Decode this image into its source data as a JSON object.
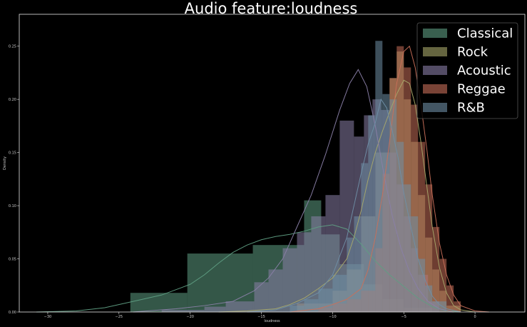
{
  "chart_data": {
    "type": "histogram+kde",
    "title": "Audio feature:loudness",
    "xlabel": "loudness",
    "ylabel": "Density",
    "xlim": [
      -32,
      3.5
    ],
    "ylim": [
      0,
      0.28
    ],
    "xticks": [
      -30,
      -25,
      -20,
      -15,
      -10,
      -5,
      0
    ],
    "yticks": [
      0.0,
      0.05,
      0.1,
      0.15,
      0.2,
      0.25
    ],
    "ytick_labels": [
      "0.00",
      "0.05",
      "0.10",
      "0.15",
      "0.20",
      "0.25"
    ],
    "grid": false,
    "legend_position": "top-right",
    "series": [
      {
        "name": "Classical",
        "color": "#5f9e83",
        "hist": [
          [
            -24.2,
            -20.2,
            0.018
          ],
          [
            -20.2,
            -15.6,
            0.055
          ],
          [
            -15.6,
            -12.0,
            0.063
          ],
          [
            -12.0,
            -10.8,
            0.105
          ],
          [
            -10.8,
            -9.5,
            0.073
          ],
          [
            -9.5,
            -7.8,
            0.045
          ],
          [
            -7.8,
            -6.5,
            0.026
          ],
          [
            -6.5,
            -5.0,
            0.012
          ],
          [
            -5.0,
            -3.0,
            0.004
          ]
        ],
        "kde": [
          [
            -30.8,
            0.0
          ],
          [
            -28,
            0.001
          ],
          [
            -26,
            0.004
          ],
          [
            -24,
            0.01
          ],
          [
            -22,
            0.016
          ],
          [
            -20,
            0.026
          ],
          [
            -19,
            0.035
          ],
          [
            -18,
            0.046
          ],
          [
            -17,
            0.056
          ],
          [
            -16,
            0.063
          ],
          [
            -15,
            0.068
          ],
          [
            -14,
            0.071
          ],
          [
            -13,
            0.073
          ],
          [
            -12,
            0.076
          ],
          [
            -11,
            0.08
          ],
          [
            -10,
            0.082
          ],
          [
            -9,
            0.078
          ],
          [
            -8,
            0.064
          ],
          [
            -7,
            0.048
          ],
          [
            -6,
            0.035
          ],
          [
            -5,
            0.024
          ],
          [
            -4,
            0.013
          ],
          [
            -3,
            0.005
          ],
          [
            -2,
            0.001
          ],
          [
            -1,
            0.0
          ]
        ]
      },
      {
        "name": "Rock",
        "color": "#a8a86a",
        "hist": [
          [
            -12.5,
            -10.0,
            0.008
          ],
          [
            -10.0,
            -9.0,
            0.02
          ],
          [
            -9.0,
            -8.0,
            0.04
          ],
          [
            -8.0,
            -7.0,
            0.09
          ],
          [
            -7.0,
            -6.0,
            0.15
          ],
          [
            -6.0,
            -5.5,
            0.22
          ],
          [
            -5.5,
            -5.0,
            0.245
          ],
          [
            -5.0,
            -4.5,
            0.2
          ],
          [
            -4.5,
            -4.0,
            0.16
          ],
          [
            -4.0,
            -3.5,
            0.11
          ],
          [
            -3.5,
            -3.0,
            0.07
          ],
          [
            -3.0,
            -2.5,
            0.04
          ],
          [
            -2.5,
            -2.0,
            0.02
          ],
          [
            -2.0,
            -1.0,
            0.006
          ]
        ],
        "kde": [
          [
            -18,
            0.0
          ],
          [
            -16,
            0.001
          ],
          [
            -14,
            0.003
          ],
          [
            -13,
            0.007
          ],
          [
            -12,
            0.013
          ],
          [
            -11,
            0.022
          ],
          [
            -10,
            0.032
          ],
          [
            -9,
            0.05
          ],
          [
            -8.5,
            0.07
          ],
          [
            -8,
            0.095
          ],
          [
            -7.5,
            0.125
          ],
          [
            -7,
            0.15
          ],
          [
            -6.5,
            0.17
          ],
          [
            -6,
            0.188
          ],
          [
            -5.5,
            0.205
          ],
          [
            -5,
            0.218
          ],
          [
            -4.6,
            0.215
          ],
          [
            -4.2,
            0.195
          ],
          [
            -3.8,
            0.16
          ],
          [
            -3.4,
            0.12
          ],
          [
            -3,
            0.08
          ],
          [
            -2.5,
            0.042
          ],
          [
            -2,
            0.018
          ],
          [
            -1.5,
            0.006
          ],
          [
            -1,
            0.002
          ],
          [
            0,
            0.0
          ]
        ]
      },
      {
        "name": "Acoustic",
        "color": "#8a7fa8",
        "hist": [
          [
            -22,
            -19,
            0.002
          ],
          [
            -19,
            -17.5,
            0.005
          ],
          [
            -17.5,
            -15.5,
            0.01
          ],
          [
            -15.5,
            -14.5,
            0.028
          ],
          [
            -14.5,
            -13.5,
            0.04
          ],
          [
            -13.5,
            -12.5,
            0.06
          ],
          [
            -12.5,
            -11.5,
            0.075
          ],
          [
            -11.5,
            -10.5,
            0.09
          ],
          [
            -10.5,
            -9.5,
            0.11
          ],
          [
            -9.5,
            -8.5,
            0.18
          ],
          [
            -8.5,
            -7.8,
            0.165
          ],
          [
            -7.8,
            -7.2,
            0.185
          ],
          [
            -7.2,
            -6.6,
            0.2
          ],
          [
            -6.6,
            -6.0,
            0.19
          ],
          [
            -6.0,
            -5.5,
            0.15
          ],
          [
            -5.5,
            -5.0,
            0.12
          ],
          [
            -5.0,
            -4.5,
            0.09
          ],
          [
            -4.5,
            -4.0,
            0.06
          ],
          [
            -4.0,
            -3.3,
            0.035
          ],
          [
            -3.3,
            -2.5,
            0.01
          ]
        ],
        "kde": [
          [
            -24,
            0.0
          ],
          [
            -21,
            0.003
          ],
          [
            -19,
            0.006
          ],
          [
            -17,
            0.01
          ],
          [
            -15.5,
            0.02
          ],
          [
            -14.5,
            0.032
          ],
          [
            -13.5,
            0.05
          ],
          [
            -12.5,
            0.08
          ],
          [
            -11.5,
            0.11
          ],
          [
            -10.5,
            0.148
          ],
          [
            -9.5,
            0.19
          ],
          [
            -8.8,
            0.215
          ],
          [
            -8.2,
            0.228
          ],
          [
            -7.6,
            0.212
          ],
          [
            -7.0,
            0.175
          ],
          [
            -6.4,
            0.13
          ],
          [
            -5.8,
            0.09
          ],
          [
            -5.2,
            0.06
          ],
          [
            -4.6,
            0.038
          ],
          [
            -4,
            0.022
          ],
          [
            -3.3,
            0.01
          ],
          [
            -2.5,
            0.003
          ],
          [
            -1.5,
            0.0
          ]
        ]
      },
      {
        "name": "Reggae",
        "color": "#c9705a",
        "hist": [
          [
            -11,
            -10,
            0.004
          ],
          [
            -10,
            -9,
            0.008
          ],
          [
            -9,
            -8,
            0.012
          ],
          [
            -8,
            -7,
            0.02
          ],
          [
            -7,
            -6.5,
            0.06
          ],
          [
            -6.5,
            -6.0,
            0.13
          ],
          [
            -6.0,
            -5.5,
            0.22
          ],
          [
            -5.5,
            -5.0,
            0.25
          ],
          [
            -5.0,
            -4.5,
            0.23
          ],
          [
            -4.5,
            -4.0,
            0.195
          ],
          [
            -4.0,
            -3.5,
            0.16
          ],
          [
            -3.5,
            -3.0,
            0.12
          ],
          [
            -3.0,
            -2.5,
            0.08
          ],
          [
            -2.5,
            -2.0,
            0.05
          ],
          [
            -2.0,
            -1.5,
            0.025
          ],
          [
            -1.5,
            -1.0,
            0.01
          ]
        ],
        "kde": [
          [
            -13,
            0.0
          ],
          [
            -11,
            0.003
          ],
          [
            -10,
            0.007
          ],
          [
            -9,
            0.012
          ],
          [
            -8,
            0.022
          ],
          [
            -7.5,
            0.04
          ],
          [
            -7,
            0.07
          ],
          [
            -6.5,
            0.11
          ],
          [
            -6,
            0.16
          ],
          [
            -5.5,
            0.215
          ],
          [
            -5,
            0.245
          ],
          [
            -4.6,
            0.25
          ],
          [
            -4.2,
            0.23
          ],
          [
            -3.8,
            0.195
          ],
          [
            -3.4,
            0.155
          ],
          [
            -3,
            0.11
          ],
          [
            -2.5,
            0.065
          ],
          [
            -2,
            0.035
          ],
          [
            -1.5,
            0.016
          ],
          [
            -1,
            0.006
          ],
          [
            0,
            0.001
          ],
          [
            1,
            0.0
          ]
        ]
      },
      {
        "name": "R&B",
        "color": "#6f8fa6",
        "hist": [
          [
            -13,
            -12,
            0.006
          ],
          [
            -12,
            -11,
            0.012
          ],
          [
            -11,
            -10,
            0.022
          ],
          [
            -10,
            -9,
            0.035
          ],
          [
            -9,
            -8.5,
            0.07
          ],
          [
            -8.5,
            -8.0,
            0.09
          ],
          [
            -8.0,
            -7.5,
            0.14
          ],
          [
            -7.5,
            -7.0,
            0.185
          ],
          [
            -7.0,
            -6.5,
            0.255
          ],
          [
            -6.5,
            -6.0,
            0.205
          ],
          [
            -6.0,
            -5.5,
            0.2
          ],
          [
            -5.5,
            -5.0,
            0.16
          ],
          [
            -5.0,
            -4.5,
            0.12
          ],
          [
            -4.5,
            -4.0,
            0.09
          ],
          [
            -4.0,
            -3.5,
            0.05
          ],
          [
            -3.5,
            -3.0,
            0.025
          ],
          [
            -3.0,
            -2.0,
            0.01
          ]
        ],
        "kde": [
          [
            -16,
            0.0
          ],
          [
            -14,
            0.002
          ],
          [
            -12.5,
            0.008
          ],
          [
            -11,
            0.018
          ],
          [
            -10,
            0.035
          ],
          [
            -9,
            0.07
          ],
          [
            -8.5,
            0.1
          ],
          [
            -8,
            0.13
          ],
          [
            -7.5,
            0.158
          ],
          [
            -7,
            0.178
          ],
          [
            -6.6,
            0.2
          ],
          [
            -6.2,
            0.192
          ],
          [
            -5.8,
            0.17
          ],
          [
            -5.4,
            0.145
          ],
          [
            -5,
            0.112
          ],
          [
            -4.5,
            0.08
          ],
          [
            -4,
            0.05
          ],
          [
            -3.5,
            0.03
          ],
          [
            -3,
            0.015
          ],
          [
            -2.5,
            0.007
          ],
          [
            -2,
            0.003
          ],
          [
            -1,
            0.0
          ]
        ]
      }
    ]
  }
}
